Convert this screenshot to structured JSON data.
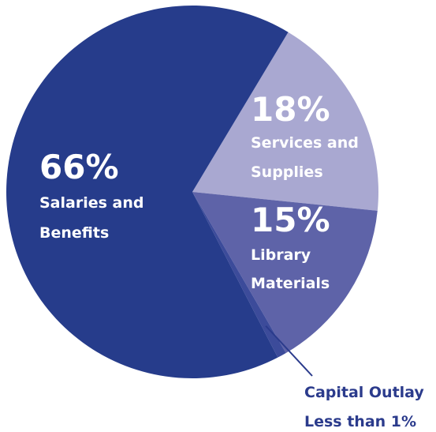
{
  "chart_data": {
    "type": "pie",
    "title": "",
    "start_angle_deg": -59,
    "direction": "clockwise",
    "slices": [
      {
        "value": 18,
        "percent_label": "18%",
        "label_lines": [
          "Services and",
          "Supplies"
        ],
        "color": "#a9a8d1"
      },
      {
        "value": 15,
        "percent_label": "15%",
        "label_lines": [
          "Library",
          "Materials"
        ],
        "color": "#5e63a8"
      },
      {
        "value": 0.8,
        "percent_label": "",
        "label_lines": [
          "Capital Outlay",
          "Less than 1%"
        ],
        "color": "#3c4b9a",
        "callout": true,
        "callout_color": "#2b3b8c"
      },
      {
        "value": 66.2,
        "percent_label": "66%",
        "label_lines": [
          "Salaries and",
          "Benefits"
        ],
        "color": "#263c8b"
      }
    ]
  }
}
